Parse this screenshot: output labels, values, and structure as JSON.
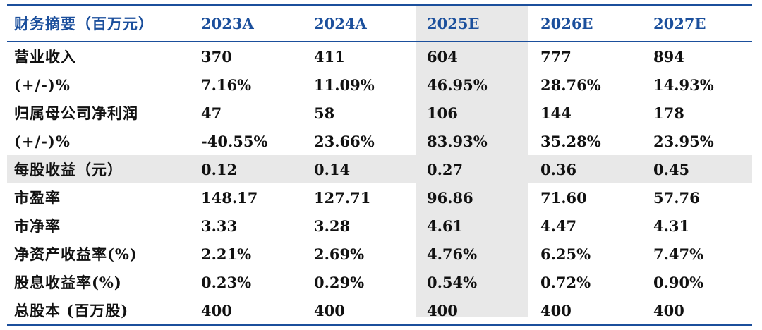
{
  "table": {
    "headers": [
      "财务摘要（百万元）",
      "2023A",
      "2024A",
      "2025E",
      "2026E",
      "2027E"
    ],
    "rows": [
      [
        "营业收入",
        "370",
        "411",
        "604",
        "777",
        "894"
      ],
      [
        "(+/-)%",
        "7.16%",
        "11.09%",
        "46.95%",
        "28.76%",
        "14.93%"
      ],
      [
        "归属母公司净利润",
        "47",
        "58",
        "106",
        "144",
        "178"
      ],
      [
        "(+/-)%",
        "-40.55%",
        "23.66%",
        "83.93%",
        "35.28%",
        "23.95%"
      ],
      [
        "每股收益（元）",
        "0.12",
        "0.14",
        "0.27",
        "0.36",
        "0.45"
      ],
      [
        "市盈率",
        "148.17",
        "127.71",
        "96.86",
        "71.60",
        "57.76"
      ],
      [
        "市净率",
        "3.33",
        "3.28",
        "4.61",
        "4.47",
        "4.31"
      ],
      [
        "净资产收益率(%)",
        "2.21%",
        "2.69%",
        "4.76%",
        "6.25%",
        "7.47%"
      ],
      [
        "股息收益率(%)",
        "0.23%",
        "0.29%",
        "0.54%",
        "0.72%",
        "0.90%"
      ],
      [
        "总股本 (百万股)",
        "400",
        "400",
        "400",
        "400",
        "400"
      ]
    ]
  },
  "colors": {
    "header_text": "#1b4f9c",
    "border": "#1b4f9c",
    "highlight_fill": "#e8e8e8",
    "body_text": "#111111"
  }
}
